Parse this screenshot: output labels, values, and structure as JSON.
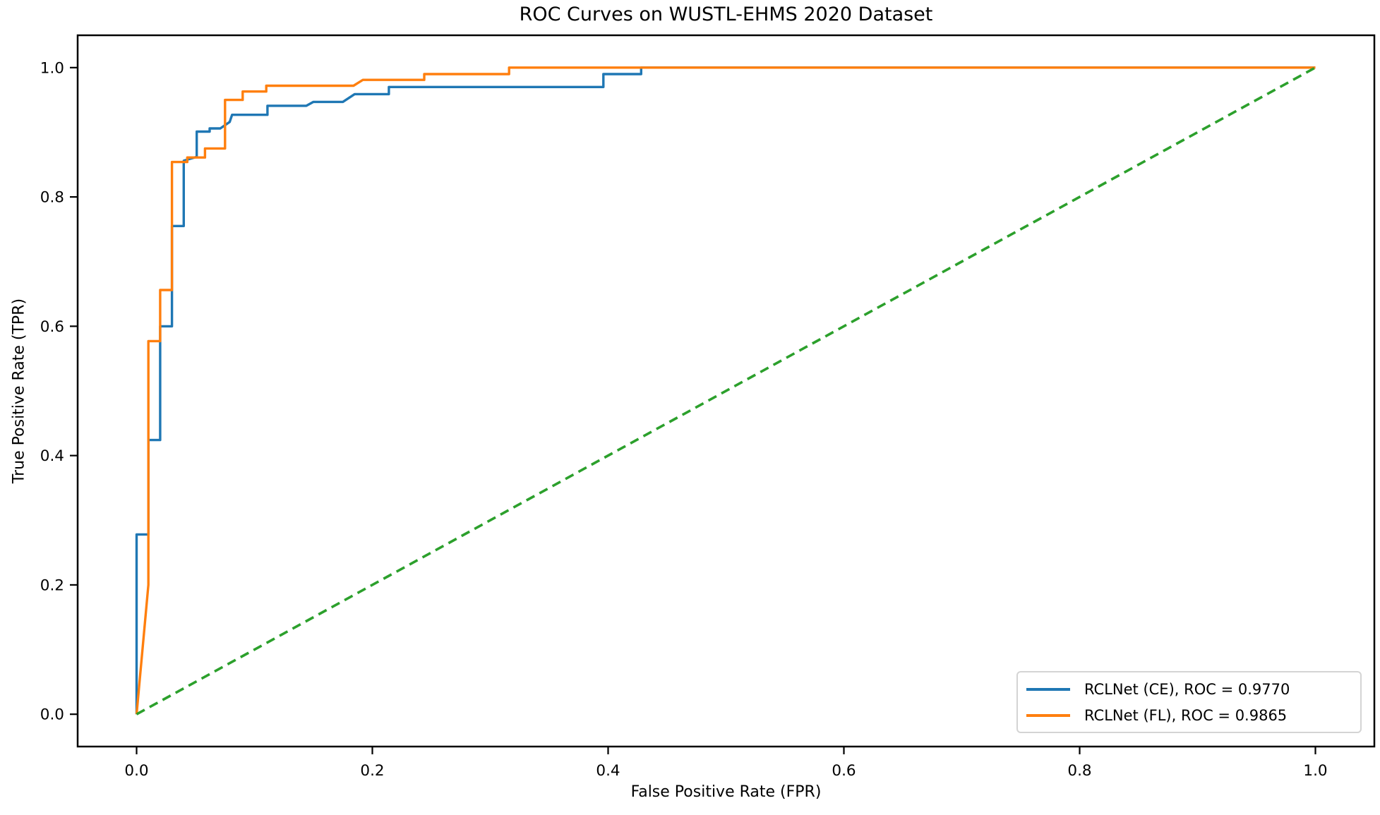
{
  "chart_data": {
    "type": "line",
    "title": "ROC Curves on WUSTL-EHMS 2020 Dataset",
    "xlabel": "False Positive Rate (FPR)",
    "ylabel": "True Positive Rate (TPR)",
    "xlim": [
      -0.05,
      1.05
    ],
    "ylim": [
      -0.05,
      1.05
    ],
    "grid": false,
    "legend_position": "lower right",
    "x_ticks": {
      "values": [
        0.0,
        0.2,
        0.4,
        0.6,
        0.8,
        1.0
      ],
      "labels": [
        "0.0",
        "0.2",
        "0.4",
        "0.6",
        "0.8",
        "1.0"
      ]
    },
    "y_ticks": {
      "values": [
        0.0,
        0.2,
        0.4,
        0.6,
        0.8,
        1.0
      ],
      "labels": [
        "0.0",
        "0.2",
        "0.4",
        "0.6",
        "0.8",
        "1.0"
      ]
    },
    "series": [
      {
        "name": "RCLNet (CE)",
        "label": "RCLNet (CE), ROC = 0.9770",
        "auc": 0.977,
        "color": "#1f77b4",
        "style": "solid",
        "points": [
          [
            0.0,
            0.0
          ],
          [
            0.0,
            0.278
          ],
          [
            0.01,
            0.278
          ],
          [
            0.01,
            0.424
          ],
          [
            0.02,
            0.424
          ],
          [
            0.02,
            0.6
          ],
          [
            0.03,
            0.6
          ],
          [
            0.03,
            0.755
          ],
          [
            0.04,
            0.755
          ],
          [
            0.04,
            0.856
          ],
          [
            0.051,
            0.862
          ],
          [
            0.051,
            0.901
          ],
          [
            0.062,
            0.901
          ],
          [
            0.062,
            0.906
          ],
          [
            0.071,
            0.906
          ],
          [
            0.079,
            0.916
          ],
          [
            0.081,
            0.927
          ],
          [
            0.111,
            0.927
          ],
          [
            0.111,
            0.941
          ],
          [
            0.144,
            0.941
          ],
          [
            0.15,
            0.947
          ],
          [
            0.175,
            0.947
          ],
          [
            0.185,
            0.959
          ],
          [
            0.214,
            0.959
          ],
          [
            0.214,
            0.97
          ],
          [
            0.396,
            0.97
          ],
          [
            0.396,
            0.99
          ],
          [
            0.428,
            0.99
          ],
          [
            0.428,
            1.0
          ],
          [
            1.0,
            1.0
          ]
        ]
      },
      {
        "name": "RCLNet (FL)",
        "label": "RCLNet (FL), ROC = 0.9865",
        "auc": 0.9865,
        "color": "#ff7f0e",
        "style": "solid",
        "points": [
          [
            0.0,
            0.0
          ],
          [
            0.01,
            0.2
          ],
          [
            0.01,
            0.577
          ],
          [
            0.02,
            0.577
          ],
          [
            0.02,
            0.656
          ],
          [
            0.03,
            0.656
          ],
          [
            0.03,
            0.854
          ],
          [
            0.043,
            0.854
          ],
          [
            0.043,
            0.861
          ],
          [
            0.058,
            0.861
          ],
          [
            0.058,
            0.875
          ],
          [
            0.075,
            0.875
          ],
          [
            0.075,
            0.95
          ],
          [
            0.09,
            0.95
          ],
          [
            0.09,
            0.963
          ],
          [
            0.11,
            0.963
          ],
          [
            0.11,
            0.972
          ],
          [
            0.184,
            0.972
          ],
          [
            0.192,
            0.981
          ],
          [
            0.244,
            0.981
          ],
          [
            0.244,
            0.99
          ],
          [
            0.316,
            0.99
          ],
          [
            0.316,
            1.0
          ],
          [
            1.0,
            1.0
          ]
        ]
      }
    ],
    "reference_line": {
      "name": "chance-diagonal",
      "color": "#2ca02c",
      "style": "dashed",
      "points": [
        [
          0.0,
          0.0
        ],
        [
          1.0,
          1.0
        ]
      ]
    }
  }
}
